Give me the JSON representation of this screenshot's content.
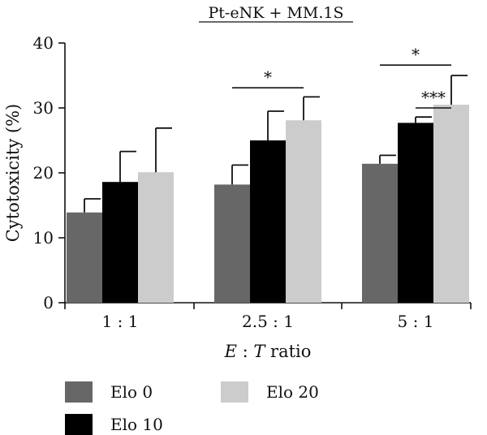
{
  "chart_data": {
    "type": "bar",
    "title": "Pt-eNK + MM.1S",
    "xlabel_italic_1": "E",
    "xlabel_sep": " : ",
    "xlabel_italic_2": "T",
    "xlabel_rest": " ratio",
    "ylabel": "Cytotoxicity (%)",
    "ylim": [
      0,
      40
    ],
    "yticks": [
      "0",
      "10",
      "20",
      "30",
      "40"
    ],
    "categories": [
      "1 : 1",
      "2.5 : 1",
      "5 : 1"
    ],
    "series": [
      {
        "name": "Elo 0",
        "color": "#676767",
        "values": [
          13.9,
          18.2,
          21.4
        ],
        "errors": [
          2.1,
          3.0,
          1.3
        ]
      },
      {
        "name": "Elo 10",
        "color": "#000000",
        "values": [
          18.6,
          25.0,
          27.7
        ],
        "errors": [
          4.7,
          4.5,
          0.9
        ]
      },
      {
        "name": "Elo 20",
        "color": "#cccccc",
        "values": [
          20.1,
          28.1,
          30.5
        ],
        "errors": [
          6.8,
          3.6,
          4.5
        ]
      }
    ],
    "significance": [
      {
        "category": 1,
        "from_series": 0,
        "to_series": 2,
        "label": "*",
        "y": 33.1
      },
      {
        "category": 2,
        "from_series": 1,
        "to_series": 2,
        "label": "***",
        "y": 30.0
      },
      {
        "category": 2,
        "from_series": 0,
        "to_series": 2,
        "label": "*",
        "y": 36.6
      }
    ],
    "grid": false,
    "legend_position": "bottom"
  }
}
